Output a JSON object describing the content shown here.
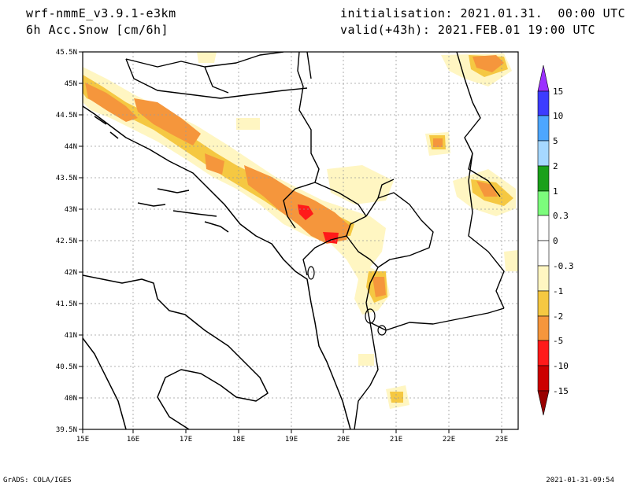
{
  "header": {
    "model": "wrf-nmmE_v3.9.1-e3km",
    "variable": "6h Acc.Snow [cm/6h]",
    "init": "initialisation: 2021.01.31.  00:00 UTC",
    "valid": "valid(+43h): 2021.FEB.01 19:00 UTC"
  },
  "footer": {
    "credit": "GrADS: COLA/IGES",
    "timestamp": "2021-01-31-09:54"
  },
  "map": {
    "lon_labels": [
      "15E",
      "16E",
      "17E",
      "18E",
      "19E",
      "20E",
      "21E",
      "22E",
      "23E"
    ],
    "lat_labels": [
      "45.5N",
      "45N",
      "44.5N",
      "44N",
      "43.5N",
      "43N",
      "42.5N",
      "42N",
      "41.5N",
      "41N",
      "40.5N",
      "40N",
      "39.5N"
    ]
  },
  "colorbar": {
    "labels": [
      "15",
      "10",
      "5",
      "2",
      "1",
      "0.3",
      "0",
      "-0.3",
      "-1",
      "-2",
      "-5",
      "-10",
      "-15"
    ],
    "colors": [
      "#9b30ff",
      "#3c3cff",
      "#4da6ff",
      "#a6d8ff",
      "#1aa01a",
      "#7cfc7c",
      "#ffffff",
      "#ffffff",
      "#fff6c2",
      "#f5c842",
      "#f5963c",
      "#ff1a1a",
      "#cc0000",
      "#990000"
    ]
  }
}
